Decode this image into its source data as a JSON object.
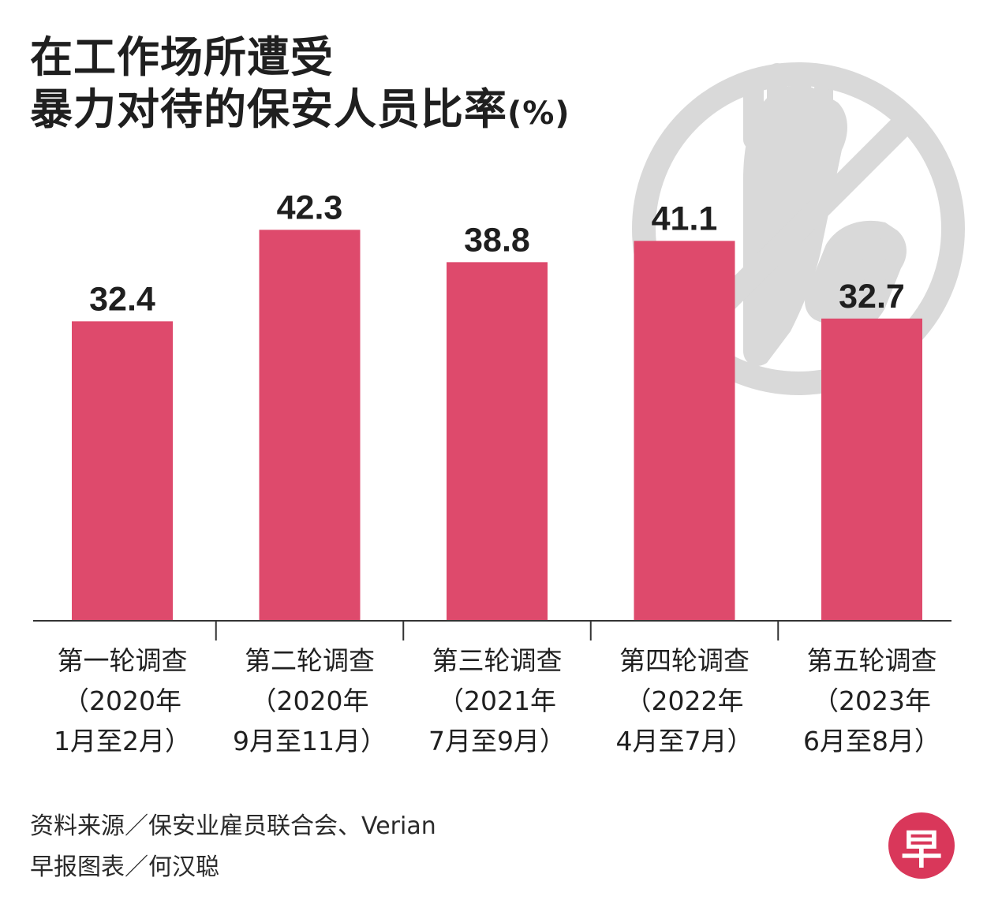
{
  "header": {
    "title_line1": "在工作场所遭受",
    "title_line2": "暴力对待的保安人员比率",
    "title_unit": "(%)"
  },
  "colors": {
    "bar": "#de4a6c",
    "axis": "#333333",
    "background_graphic": "#d9d9d9",
    "logo": "#d9375a"
  },
  "background_graphic": {
    "icon": "no-violence-fist-grabbing-arm-icon"
  },
  "chart_data": {
    "type": "bar",
    "title": "在工作场所遭受暴力对待的保安人员比率(%)",
    "xlabel": "",
    "ylabel": "",
    "ylim": [
      0,
      46
    ],
    "grid": false,
    "categories": [
      [
        "第一轮调查",
        "（2020年",
        "1月至2月）"
      ],
      [
        "第二轮调查",
        "（2020年",
        "9月至11月）"
      ],
      [
        "第三轮调查",
        "（2021年",
        "7月至9月）"
      ],
      [
        "第四轮调查",
        "（2022年",
        "4月至7月）"
      ],
      [
        "第五轮调查",
        "（2023年",
        "6月至8月）"
      ]
    ],
    "values": [
      32.4,
      42.3,
      38.8,
      41.1,
      32.7
    ],
    "value_labels": [
      "32.4",
      "42.3",
      "38.8",
      "41.1",
      "32.7"
    ]
  },
  "footer": {
    "source_line1": "资料来源／保安业雇员联合会、Verian",
    "source_line2": "早报图表／何汉聪",
    "logo_text": "早"
  }
}
